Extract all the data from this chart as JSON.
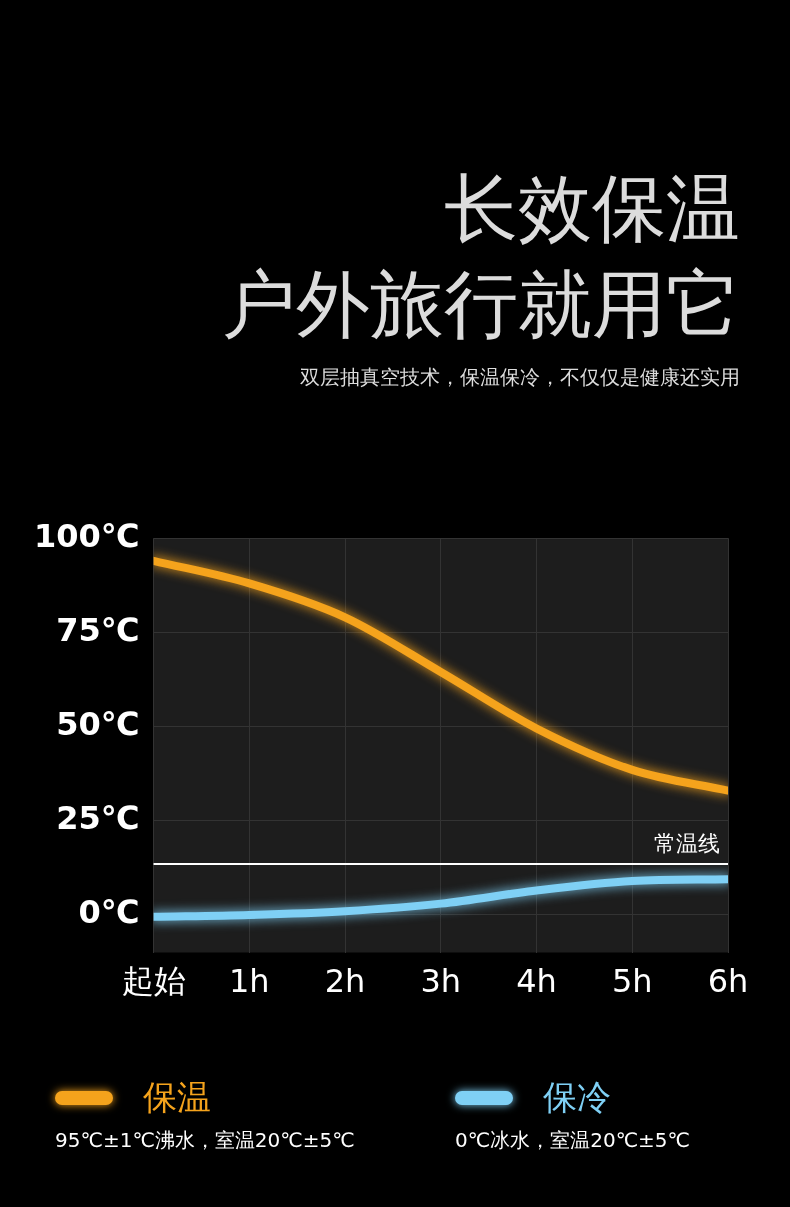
{
  "chart_data": {
    "type": "line",
    "title": "长效保温",
    "subtitle": "户外旅行就用它",
    "annotations": [
      "双层抽真空技术，保温保冷，不仅仅是健康还实用",
      "95℃±1℃沸水，室温20℃±5℃",
      "0℃冰水，室温20℃±5℃"
    ],
    "x": [
      0,
      1,
      2,
      3,
      4,
      5,
      6
    ],
    "series": [
      {
        "name": "保温",
        "color": "#f5a31c",
        "values": [
          94,
          88,
          79,
          64.5,
          49.5,
          38.5,
          33
        ]
      },
      {
        "name": "保冷",
        "color": "#7fd0f5",
        "values": [
          -0.5,
          0,
          1,
          3,
          6.5,
          9,
          9.5
        ]
      }
    ],
    "xlim": [
      0,
      6
    ],
    "xticks": [
      {
        "value": 0,
        "label": "起始"
      },
      {
        "value": 1,
        "label": "1h"
      },
      {
        "value": 2,
        "label": "2h"
      },
      {
        "value": 3,
        "label": "3h"
      },
      {
        "value": 4,
        "label": "4h"
      },
      {
        "value": 5,
        "label": "5h"
      },
      {
        "value": 6,
        "label": "6h"
      }
    ],
    "ylim": [
      -10,
      100
    ],
    "yticks": [
      {
        "value": 0,
        "label": "0℃"
      },
      {
        "value": 25,
        "label": "25℃"
      },
      {
        "value": 50,
        "label": "50℃"
      },
      {
        "value": 75,
        "label": "75℃"
      },
      {
        "value": 100,
        "label": "100℃"
      }
    ],
    "ref_lines": [
      {
        "axis": "y",
        "value": 13.5,
        "label": "常温线",
        "color": "#ffffff"
      }
    ],
    "grid": true,
    "legend": "bottom",
    "marker": "none",
    "line_style": "solid"
  }
}
